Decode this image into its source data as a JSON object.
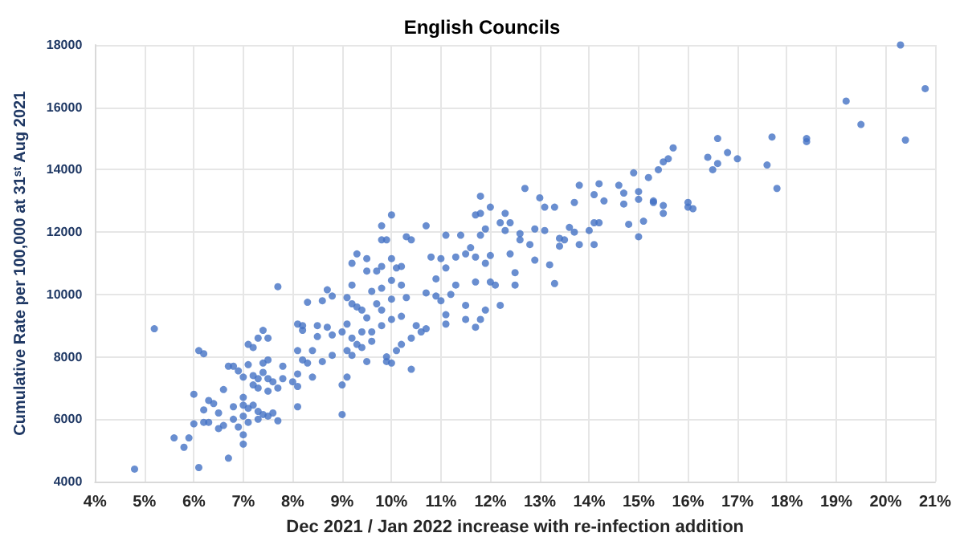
{
  "chart_data": {
    "type": "scatter",
    "title": "English Councils",
    "xlabel": "Dec 2021 / Jan 2022 increase with re-infection addition",
    "ylabel": "Cumulative Rate per 100,000 at 31$^{st}$ Aug 2021",
    "xlim": [
      4,
      21
    ],
    "xticks": [
      {
        "value": 4,
        "label": "4%"
      },
      {
        "value": 5,
        "label": "5%"
      },
      {
        "value": 6,
        "label": "6%"
      },
      {
        "value": 7,
        "label": "7%"
      },
      {
        "value": 8,
        "label": "8%"
      },
      {
        "value": 9,
        "label": "9%"
      },
      {
        "value": 10,
        "label": "10%"
      },
      {
        "value": 11,
        "label": "11%"
      },
      {
        "value": 12,
        "label": "12%"
      },
      {
        "value": 13,
        "label": "13%"
      },
      {
        "value": 14,
        "label": "14%"
      },
      {
        "value": 15,
        "label": "15%"
      },
      {
        "value": 16,
        "label": "16%"
      },
      {
        "value": 17,
        "label": "17%"
      },
      {
        "value": 18,
        "label": "18%"
      },
      {
        "value": 19,
        "label": "19%"
      },
      {
        "value": 20,
        "label": "20%"
      },
      {
        "value": 21,
        "label": "21%"
      }
    ],
    "ylim": [
      4000,
      18000
    ],
    "yticks": [
      4000,
      6000,
      8000,
      10000,
      12000,
      14000,
      16000,
      18000
    ],
    "grid": true,
    "marker": "circle",
    "series": [
      {
        "color": "#4472c4",
        "x": [
          4.8,
          5.2,
          5.6,
          5.8,
          5.9,
          6.0,
          6.0,
          6.1,
          6.1,
          6.2,
          6.2,
          6.2,
          6.3,
          6.3,
          6.4,
          6.5,
          6.5,
          6.6,
          6.6,
          6.7,
          6.7,
          6.8,
          6.8,
          6.8,
          6.9,
          6.9,
          7.0,
          7.0,
          7.0,
          7.0,
          7.0,
          7.0,
          7.1,
          7.1,
          7.1,
          7.1,
          7.2,
          7.2,
          7.2,
          7.2,
          7.3,
          7.3,
          7.3,
          7.3,
          7.3,
          7.4,
          7.4,
          7.4,
          7.4,
          7.5,
          7.5,
          7.5,
          7.5,
          7.5,
          7.6,
          7.6,
          7.7,
          7.7,
          7.7,
          7.8,
          7.8,
          8.0,
          8.1,
          8.1,
          8.1,
          8.1,
          8.1,
          8.2,
          8.2,
          8.2,
          8.3,
          8.3,
          8.4,
          8.4,
          8.5,
          8.5,
          8.6,
          8.6,
          8.7,
          8.7,
          8.8,
          8.8,
          8.8,
          9.0,
          9.0,
          9.0,
          9.1,
          9.1,
          9.1,
          9.1,
          9.2,
          9.2,
          9.2,
          9.2,
          9.2,
          9.3,
          9.3,
          9.3,
          9.4,
          9.4,
          9.4,
          9.5,
          9.5,
          9.5,
          9.5,
          9.6,
          9.6,
          9.6,
          9.7,
          9.7,
          9.8,
          9.8,
          9.8,
          9.8,
          9.8,
          9.8,
          9.9,
          9.9,
          9.9,
          10.0,
          10.0,
          10.0,
          10.0,
          10.0,
          10.0,
          10.1,
          10.1,
          10.2,
          10.2,
          10.2,
          10.2,
          10.3,
          10.3,
          10.4,
          10.4,
          10.4,
          10.5,
          10.6,
          10.7,
          10.7,
          10.7,
          10.8,
          10.9,
          10.9,
          11.0,
          11.0,
          11.1,
          11.1,
          11.1,
          11.1,
          11.2,
          11.3,
          11.3,
          11.4,
          11.5,
          11.5,
          11.5,
          11.6,
          11.7,
          11.7,
          11.7,
          11.7,
          11.8,
          11.8,
          11.8,
          11.8,
          11.9,
          11.9,
          11.9,
          12.0,
          12.0,
          12.0,
          12.1,
          12.2,
          12.2,
          12.3,
          12.3,
          12.4,
          12.4,
          12.5,
          12.5,
          12.6,
          12.6,
          12.7,
          12.8,
          12.9,
          12.9,
          13.0,
          13.1,
          13.1,
          13.2,
          13.3,
          13.3,
          13.4,
          13.4,
          13.5,
          13.6,
          13.7,
          13.7,
          13.8,
          13.8,
          14.0,
          14.1,
          14.1,
          14.1,
          14.2,
          14.2,
          14.3,
          14.6,
          14.7,
          14.7,
          14.8,
          14.9,
          15.0,
          15.0,
          15.0,
          15.1,
          15.2,
          15.3,
          15.3,
          15.4,
          15.5,
          15.5,
          15.5,
          15.6,
          15.7,
          16.0,
          16.0,
          16.1,
          16.4,
          16.5,
          16.6,
          16.6,
          16.8,
          17.0,
          17.6,
          17.7,
          17.8,
          18.4,
          18.4,
          19.2,
          19.5,
          20.3,
          20.4,
          20.8
        ],
        "values": [
          4400,
          8900,
          5400,
          5100,
          5400,
          6800,
          5850,
          8200,
          4450,
          8100,
          6300,
          5900,
          6600,
          5900,
          6500,
          6200,
          5700,
          6950,
          5800,
          7700,
          4750,
          7700,
          6400,
          6000,
          7550,
          5750,
          7350,
          6700,
          6450,
          6100,
          5500,
          5200,
          8400,
          7750,
          6350,
          5900,
          8300,
          7400,
          7100,
          6450,
          8600,
          7300,
          7000,
          6250,
          6000,
          8850,
          7800,
          7500,
          6150,
          8600,
          7900,
          7300,
          6900,
          6100,
          7200,
          6200,
          10250,
          7000,
          5950,
          7700,
          7300,
          7200,
          9050,
          8200,
          7450,
          6400,
          7050,
          9000,
          8850,
          7900,
          9750,
          7800,
          8200,
          7350,
          9000,
          8650,
          9800,
          7850,
          10150,
          8950,
          9950,
          8700,
          8050,
          8800,
          7100,
          6150,
          9900,
          9050,
          8200,
          7350,
          11000,
          10300,
          9700,
          8600,
          8050,
          11300,
          9600,
          8400,
          9500,
          8800,
          8300,
          11150,
          10750,
          9250,
          7850,
          10100,
          8800,
          8500,
          10750,
          9700,
          12200,
          11750,
          10900,
          10200,
          9500,
          9000,
          11750,
          8000,
          7850,
          12550,
          11150,
          10450,
          9850,
          9200,
          7800,
          10850,
          8200,
          10900,
          10300,
          9300,
          8400,
          11850,
          9900,
          11750,
          8600,
          7600,
          9000,
          8800,
          12200,
          10050,
          8900,
          11200,
          10500,
          9950,
          11150,
          9800,
          11900,
          10850,
          9350,
          9050,
          10000,
          11200,
          10300,
          11900,
          11300,
          9650,
          9200,
          11500,
          12550,
          11200,
          10400,
          8950,
          13150,
          12600,
          11900,
          9200,
          12100,
          11000,
          9500,
          12800,
          11250,
          10400,
          10300,
          12300,
          9650,
          12600,
          12050,
          12300,
          11300,
          10700,
          10300,
          11950,
          11750,
          13400,
          11600,
          12100,
          11100,
          13100,
          12800,
          12050,
          10950,
          10350,
          12800,
          11800,
          11550,
          11750,
          12150,
          12950,
          12000,
          13500,
          11600,
          12050,
          13200,
          12300,
          11600,
          13550,
          12300,
          13000,
          13500,
          13250,
          12900,
          12250,
          13900,
          13300,
          13050,
          11850,
          12350,
          13750,
          13000,
          12950,
          14000,
          14250,
          12850,
          12600,
          14350,
          14700,
          12950,
          12800,
          12750,
          14400,
          14000,
          15000,
          14200,
          14550,
          14350,
          14150,
          15050,
          13400,
          15000,
          14900,
          16200,
          15450,
          18000,
          14950,
          16600
        ]
      }
    ]
  }
}
